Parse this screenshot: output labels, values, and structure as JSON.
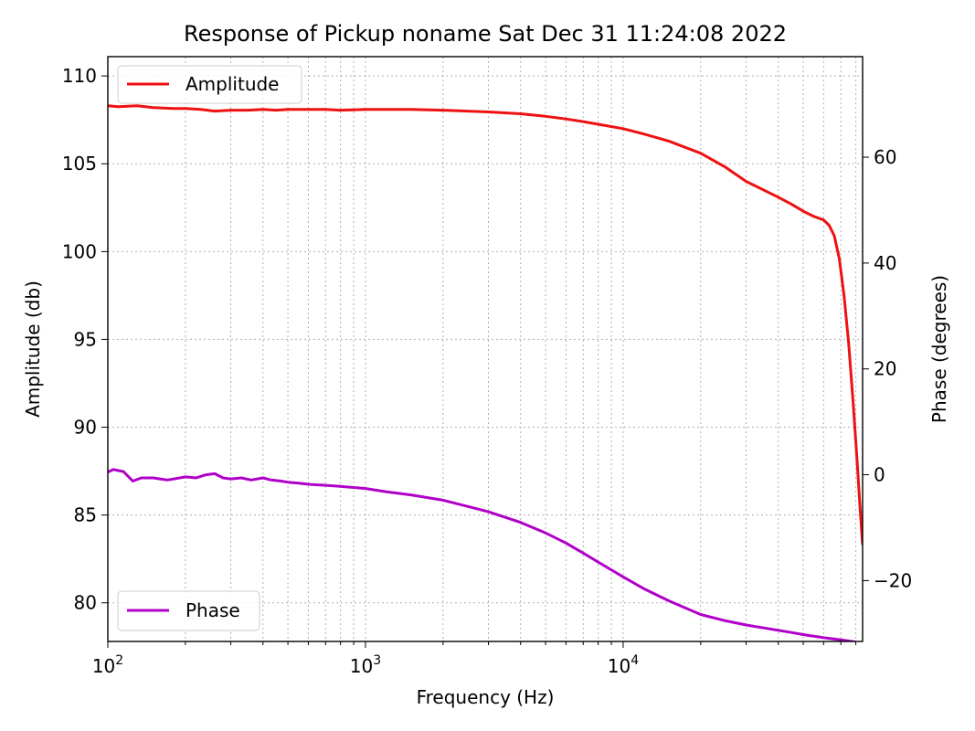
{
  "chart_data": {
    "type": "line",
    "title": "Response of Pickup noname Sat Dec 31 11:24:08 2022",
    "xlabel": "Frequency (Hz)",
    "ylabel_left": "Amplitude (db)",
    "ylabel_right": "Phase (degrees)",
    "x_scale": "log",
    "xlim": [
      100,
      85000
    ],
    "ylim_left": [
      77.8,
      111.1
    ],
    "ylim_right": [
      -31.5,
      79
    ],
    "x_ticks": [
      {
        "value": 100,
        "base": "10",
        "exp": "2"
      },
      {
        "value": 1000,
        "base": "10",
        "exp": "3"
      },
      {
        "value": 10000,
        "base": "10",
        "exp": "4"
      }
    ],
    "y_left_ticks": [
      {
        "value": 80,
        "label": "80"
      },
      {
        "value": 85,
        "label": "85"
      },
      {
        "value": 90,
        "label": "90"
      },
      {
        "value": 95,
        "label": "95"
      },
      {
        "value": 100,
        "label": "100"
      },
      {
        "value": 105,
        "label": "105"
      },
      {
        "value": 110,
        "label": "110"
      }
    ],
    "y_right_ticks": [
      {
        "value": -20,
        "label": "−20"
      },
      {
        "value": 0,
        "label": "0"
      },
      {
        "value": 20,
        "label": "20"
      },
      {
        "value": 40,
        "label": "40"
      },
      {
        "value": 60,
        "label": "60"
      }
    ],
    "grid": true,
    "series": [
      {
        "name": "Amplitude",
        "axis": "left",
        "color": "#ee1111",
        "x": [
          100,
          110,
          130,
          150,
          180,
          200,
          230,
          260,
          300,
          350,
          400,
          450,
          500,
          600,
          700,
          800,
          1000,
          1500,
          2000,
          3000,
          4000,
          5000,
          6000,
          7000,
          8000,
          10000,
          12000,
          15000,
          20000,
          25000,
          30000,
          40000,
          45000,
          50000,
          55000,
          60000,
          63000,
          66000,
          69000,
          72000,
          75000,
          78000,
          81000,
          83000,
          85000
        ],
        "values": [
          108.3,
          108.25,
          108.3,
          108.2,
          108.15,
          108.15,
          108.1,
          108.0,
          108.05,
          108.05,
          108.1,
          108.05,
          108.1,
          108.1,
          108.1,
          108.05,
          108.1,
          108.1,
          108.05,
          107.95,
          107.85,
          107.7,
          107.55,
          107.4,
          107.25,
          107.0,
          106.7,
          106.3,
          105.6,
          104.8,
          104.0,
          103.1,
          102.7,
          102.3,
          102.0,
          101.8,
          101.5,
          100.9,
          99.6,
          97.5,
          94.8,
          91.5,
          88.0,
          85.5,
          83.3
        ]
      },
      {
        "name": "Phase",
        "axis": "right",
        "color": "#b000c8",
        "x": [
          100,
          105,
          115,
          125,
          135,
          150,
          170,
          180,
          200,
          220,
          240,
          260,
          280,
          300,
          330,
          360,
          400,
          430,
          470,
          500,
          550,
          600,
          700,
          800,
          900,
          1000,
          1200,
          1500,
          2000,
          2500,
          3000,
          4000,
          5000,
          6000,
          7000,
          8000,
          10000,
          12000,
          15000,
          20000,
          25000,
          30000,
          40000,
          45000,
          50000,
          60000,
          70000,
          80000
        ],
        "values": [
          0.5,
          1.0,
          0.6,
          -1.2,
          -0.6,
          -0.6,
          -1.0,
          -0.8,
          -0.4,
          -0.6,
          0.0,
          0.2,
          -0.6,
          -0.8,
          -0.6,
          -1.0,
          -0.6,
          -1.0,
          -1.2,
          -1.4,
          -1.6,
          -1.8,
          -2.0,
          -2.2,
          -2.4,
          -2.6,
          -3.2,
          -3.8,
          -4.8,
          -6.0,
          -7.0,
          -9.0,
          -11.0,
          -12.9,
          -14.8,
          -16.5,
          -19.3,
          -21.5,
          -23.8,
          -26.4,
          -27.6,
          -28.4,
          -29.4,
          -29.8,
          -30.2,
          -30.8,
          -31.2,
          -31.6
        ]
      }
    ],
    "legends": [
      {
        "label": "Amplitude",
        "color": "#ee1111",
        "placement": "top-left"
      },
      {
        "label": "Phase",
        "color": "#b000c8",
        "placement": "bottom-left"
      }
    ]
  }
}
